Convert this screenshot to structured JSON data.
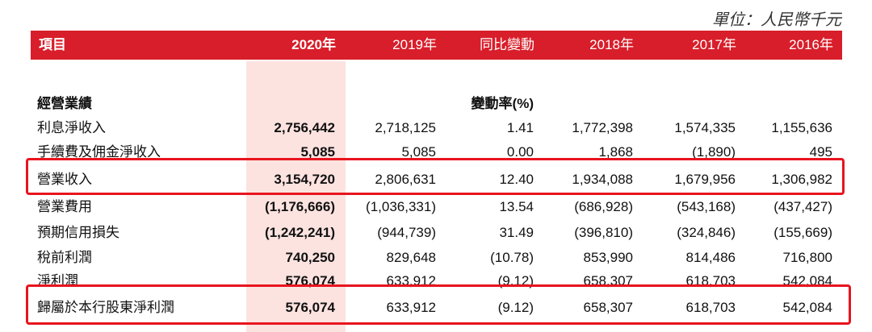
{
  "unit_label": "單位：人民幣千元",
  "header": {
    "item": "項目",
    "y2020": "2020年",
    "y2019": "2019年",
    "yoy": "同比變動",
    "y2018": "2018年",
    "y2017": "2017年",
    "y2016": "2016年"
  },
  "section": {
    "title": "經營業績",
    "yoy_label": "變動率(%)"
  },
  "rows": [
    {
      "label": "利息淨收入",
      "y2020": "2,756,442",
      "y2019": "2,718,125",
      "yoy": "1.41",
      "y2018": "1,772,398",
      "y2017": "1,574,335",
      "y2016": "1,155,636"
    },
    {
      "label": "手續費及佣金淨收入",
      "y2020": "5,085",
      "y2019": "5,085",
      "yoy": "0.00",
      "y2018": "1,868",
      "y2017": "(1,890)",
      "y2016": "495"
    },
    {
      "label": "營業收入",
      "y2020": "3,154,720",
      "y2019": "2,806,631",
      "yoy": "12.40",
      "y2018": "1,934,088",
      "y2017": "1,679,956",
      "y2016": "1,306,982"
    },
    {
      "label": "營業費用",
      "y2020": "(1,176,666)",
      "y2019": "(1,036,331)",
      "yoy": "13.54",
      "y2018": "(686,928)",
      "y2017": "(543,168)",
      "y2016": "(437,427)"
    },
    {
      "label": "預期信用損失",
      "y2020": "(1,242,241)",
      "y2019": "(944,739)",
      "yoy": "31.49",
      "y2018": "(396,810)",
      "y2017": "(324,846)",
      "y2016": "(155,669)"
    },
    {
      "label": "稅前利潤",
      "y2020": "740,250",
      "y2019": "829,648",
      "yoy": "(10.78)",
      "y2018": "853,990",
      "y2017": "814,486",
      "y2016": "716,800"
    },
    {
      "label": "淨利潤",
      "y2020": "576,074",
      "y2019": "633,912",
      "yoy": "(9.12)",
      "y2018": "658,307",
      "y2017": "618,703",
      "y2016": "542,084"
    },
    {
      "label": "歸屬於本行股東淨利潤",
      "y2020": "576,074",
      "y2019": "633,912",
      "yoy": "(9.12)",
      "y2018": "658,307",
      "y2017": "618,703",
      "y2016": "542,084"
    }
  ],
  "colors": {
    "header_bg": "#d81e2a",
    "highlight_col": "#fce3e0",
    "annotation_box": "#e8141e"
  }
}
